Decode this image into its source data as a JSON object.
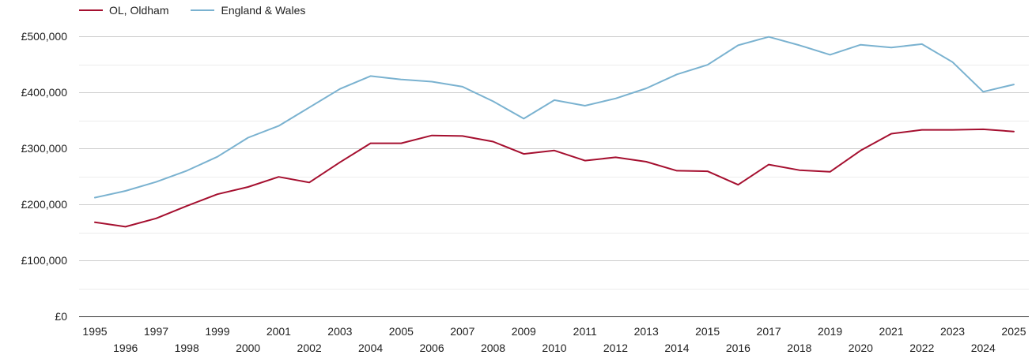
{
  "legend": {
    "items": [
      {
        "label": "OL, Oldham",
        "color": "#a50f2f"
      },
      {
        "label": "England & Wales",
        "color": "#7ab2d0"
      }
    ]
  },
  "chart_data": {
    "type": "line",
    "title": "",
    "xlabel": "",
    "ylabel": "",
    "x": [
      1995,
      1996,
      1997,
      1998,
      1999,
      2000,
      2001,
      2002,
      2003,
      2004,
      2005,
      2006,
      2007,
      2008,
      2009,
      2010,
      2011,
      2012,
      2013,
      2014,
      2015,
      2016,
      2017,
      2018,
      2019,
      2020,
      2021,
      2022,
      2023,
      2024,
      2025
    ],
    "ylim": [
      0,
      500000
    ],
    "yticks": [
      0,
      100000,
      200000,
      300000,
      400000,
      500000
    ],
    "ytick_labels": [
      "£0",
      "£100,000",
      "£200,000",
      "£300,000",
      "£400,000",
      "£500,000"
    ],
    "xtick_labels": [
      "1995",
      "1996",
      "1997",
      "1998",
      "1999",
      "2000",
      "2001",
      "2002",
      "2003",
      "2004",
      "2005",
      "2006",
      "2007",
      "2008",
      "2009",
      "2010",
      "2011",
      "2012",
      "2013",
      "2014",
      "2015",
      "2016",
      "2017",
      "2018",
      "2019",
      "2020",
      "2021",
      "2022",
      "2023",
      "2024",
      "2025"
    ],
    "grid": true,
    "legend_position": "top-left",
    "series": [
      {
        "name": "OL, Oldham",
        "color": "#a50f2f",
        "values": [
          168000,
          160000,
          175000,
          197000,
          218000,
          231000,
          249000,
          239000,
          275000,
          309000,
          309000,
          323000,
          322000,
          312000,
          290000,
          296000,
          278000,
          284000,
          276000,
          260000,
          259000,
          235000,
          271000,
          261000,
          258000,
          296000,
          326000,
          333000,
          333000,
          334000,
          330000
        ]
      },
      {
        "name": "England & Wales",
        "color": "#7ab2d0",
        "values": [
          212000,
          224000,
          240000,
          260000,
          285000,
          319000,
          340000,
          373000,
          406000,
          429000,
          423000,
          419000,
          410000,
          384000,
          353000,
          386000,
          376000,
          389000,
          407000,
          432000,
          449000,
          484000,
          499000,
          484000,
          467000,
          485000,
          480000,
          486000,
          454000,
          401000,
          414000
        ]
      }
    ]
  }
}
